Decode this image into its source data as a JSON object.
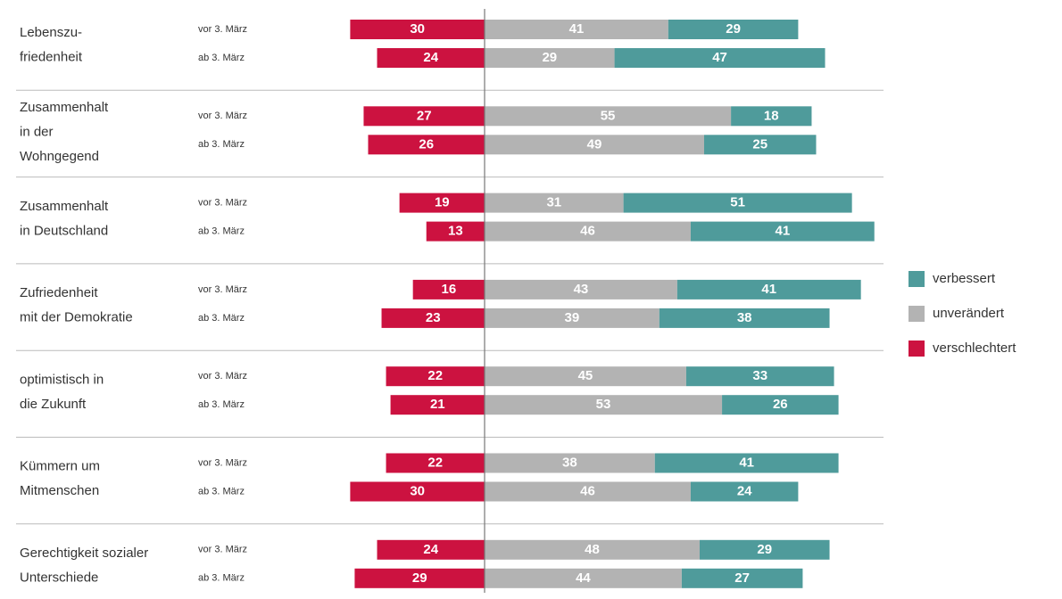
{
  "chart_data": {
    "type": "bar",
    "stacking": "diverging",
    "categories": [
      [
        "Lebenszu-",
        "friedenheit"
      ],
      [
        "Zusammenhalt",
        "in der",
        "Wohngegend"
      ],
      [
        "Zusammenhalt",
        "in Deutschland"
      ],
      [
        "Zufriedenheit",
        "mit der Demokratie"
      ],
      [
        "optimistisch in",
        "die Zukunft"
      ],
      [
        "Kümmern um",
        "Mitmenschen"
      ],
      [
        "Gerechtigkeit sozialer",
        "Unterschiede"
      ]
    ],
    "row_labels": [
      "vor 3. März",
      "ab 3. März"
    ],
    "series": [
      {
        "name": "verbessert",
        "color": "#4f9b9b",
        "values": [
          [
            29,
            47
          ],
          [
            18,
            25
          ],
          [
            51,
            41
          ],
          [
            41,
            38
          ],
          [
            33,
            26
          ],
          [
            41,
            24
          ],
          [
            29,
            27
          ]
        ]
      },
      {
        "name": "unverändert",
        "color": "#b3b3b3",
        "values": [
          [
            41,
            29
          ],
          [
            55,
            49
          ],
          [
            31,
            46
          ],
          [
            43,
            39
          ],
          [
            45,
            53
          ],
          [
            38,
            46
          ],
          [
            48,
            44
          ]
        ]
      },
      {
        "name": "verschlechtert",
        "color": "#cc1240",
        "values": [
          [
            30,
            24
          ],
          [
            27,
            26
          ],
          [
            19,
            13
          ],
          [
            16,
            23
          ],
          [
            22,
            21
          ],
          [
            22,
            30
          ],
          [
            24,
            29
          ]
        ]
      }
    ]
  }
}
